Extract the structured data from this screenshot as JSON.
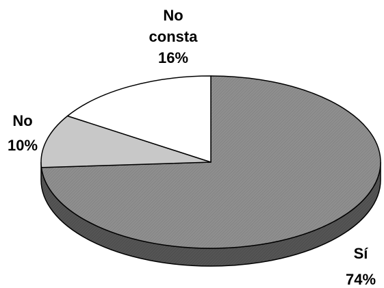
{
  "chart_data": {
    "type": "pie",
    "style": "3d",
    "slices": [
      {
        "label": "Sí",
        "value": 74,
        "value_text": "74%",
        "color": "#8c8c8c"
      },
      {
        "label": "No",
        "value": 10,
        "value_text": "10%",
        "color": "#c8c8c8"
      },
      {
        "label": "No consta",
        "value": 16,
        "value_text": "16%",
        "color": "#ffffff"
      }
    ],
    "label_lines": [
      [
        "Sí",
        "74%"
      ],
      [
        "No",
        "10%"
      ],
      [
        "No",
        "consta",
        "16%"
      ]
    ]
  }
}
